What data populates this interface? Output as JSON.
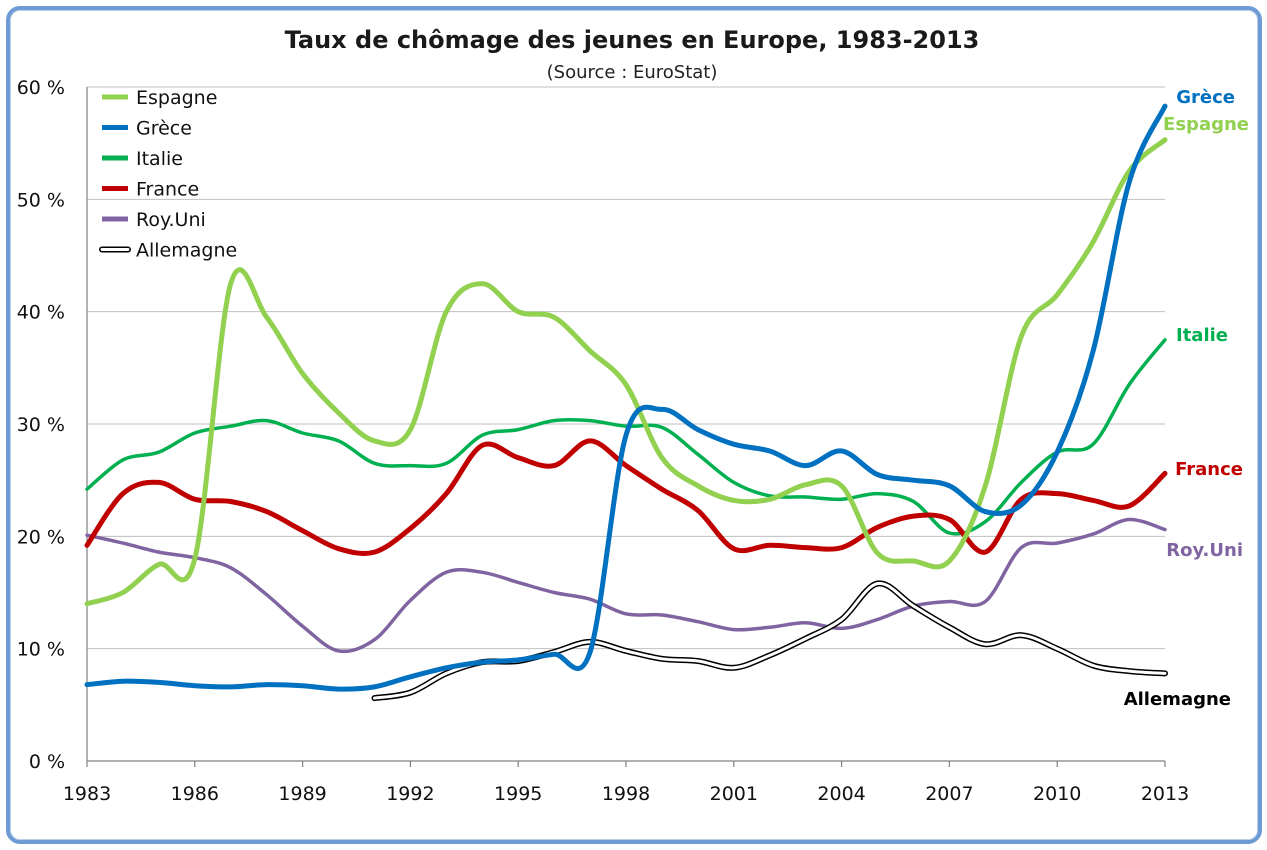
{
  "chart_data": {
    "type": "line",
    "title": "Taux de chômage des jeunes en Europe, 1983-2013",
    "subtitle": "(Source : EuroStat)",
    "xlim": [
      1983,
      2013
    ],
    "ylim": [
      0,
      60
    ],
    "x_ticks": [
      "1983",
      "1986",
      "1989",
      "1992",
      "1995",
      "1998",
      "2001",
      "2004",
      "2007",
      "2010",
      "2013"
    ],
    "y_ticks": [
      "0 %",
      "10 %",
      "20 %",
      "30 %",
      "40 %",
      "50 %",
      "60 %"
    ],
    "grid": "horizontal",
    "legend_position": "top-left",
    "series": [
      {
        "name": "Espagne",
        "end_label": "Espagne",
        "color": "#92d050",
        "points": [
          [
            1983,
            14
          ],
          [
            1984,
            15
          ],
          [
            1985,
            17.5
          ],
          [
            1986,
            18
          ],
          [
            1987,
            42.5
          ],
          [
            1988,
            39.5
          ],
          [
            1989,
            34.5
          ],
          [
            1990,
            31
          ],
          [
            1991,
            28.5
          ],
          [
            1992,
            29.5
          ],
          [
            1993,
            40
          ],
          [
            1994,
            42.5
          ],
          [
            1995,
            40
          ],
          [
            1996,
            39.5
          ],
          [
            1997,
            36.5
          ],
          [
            1998,
            33.5
          ],
          [
            1999,
            27
          ],
          [
            2000,
            24.5
          ],
          [
            2001,
            23.2
          ],
          [
            2002,
            23.3
          ],
          [
            2003,
            24.6
          ],
          [
            2004,
            24.5
          ],
          [
            2005,
            18.5
          ],
          [
            2006,
            17.8
          ],
          [
            2007,
            17.8
          ],
          [
            2008,
            24.5
          ],
          [
            2009,
            37.8
          ],
          [
            2010,
            41.5
          ],
          [
            2011,
            46.2
          ],
          [
            2012,
            52.5
          ],
          [
            2013,
            55.3
          ]
        ]
      },
      {
        "name": "Grèce",
        "end_label": "Grèce",
        "color": "#0070c0",
        "points": [
          [
            1983,
            6.8
          ],
          [
            1984,
            7.1
          ],
          [
            1985,
            7.0
          ],
          [
            1986,
            6.7
          ],
          [
            1987,
            6.6
          ],
          [
            1988,
            6.8
          ],
          [
            1989,
            6.7
          ],
          [
            1990,
            6.4
          ],
          [
            1991,
            6.6
          ],
          [
            1992,
            7.5
          ],
          [
            1993,
            8.3
          ],
          [
            1994,
            8.8
          ],
          [
            1995,
            9.0
          ],
          [
            1996,
            9.5
          ],
          [
            1997,
            9.7
          ],
          [
            1998,
            29
          ],
          [
            1999,
            31.3
          ],
          [
            2000,
            29.5
          ],
          [
            2001,
            28.2
          ],
          [
            2002,
            27.6
          ],
          [
            2003,
            26.3
          ],
          [
            2004,
            27.6
          ],
          [
            2005,
            25.5
          ],
          [
            2006,
            25.0
          ],
          [
            2007,
            24.5
          ],
          [
            2008,
            22.2
          ],
          [
            2009,
            22.8
          ],
          [
            2010,
            27.5
          ],
          [
            2011,
            36.5
          ],
          [
            2012,
            51.5
          ],
          [
            2013,
            58.3
          ]
        ]
      },
      {
        "name": "Italie",
        "end_label": "Italie",
        "color": "#00b050",
        "points": [
          [
            1983,
            24.2
          ],
          [
            1984,
            26.8
          ],
          [
            1985,
            27.5
          ],
          [
            1986,
            29.2
          ],
          [
            1987,
            29.8
          ],
          [
            1988,
            30.3
          ],
          [
            1989,
            29.2
          ],
          [
            1990,
            28.5
          ],
          [
            1991,
            26.5
          ],
          [
            1992,
            26.3
          ],
          [
            1993,
            26.5
          ],
          [
            1994,
            29
          ],
          [
            1995,
            29.5
          ],
          [
            1996,
            30.3
          ],
          [
            1997,
            30.3
          ],
          [
            1998,
            29.8
          ],
          [
            1999,
            29.7
          ],
          [
            2000,
            27.3
          ],
          [
            2001,
            24.8
          ],
          [
            2002,
            23.6
          ],
          [
            2003,
            23.5
          ],
          [
            2004,
            23.3
          ],
          [
            2005,
            23.8
          ],
          [
            2006,
            23.1
          ],
          [
            2007,
            20.3
          ],
          [
            2008,
            21.3
          ],
          [
            2009,
            24.8
          ],
          [
            2010,
            27.5
          ],
          [
            2011,
            28.2
          ],
          [
            2012,
            33.5
          ],
          [
            2013,
            37.5
          ]
        ]
      },
      {
        "name": "France",
        "end_label": "France",
        "color": "#c00000",
        "points": [
          [
            1983,
            19.2
          ],
          [
            1984,
            23.8
          ],
          [
            1985,
            24.8
          ],
          [
            1986,
            23.3
          ],
          [
            1987,
            23.1
          ],
          [
            1988,
            22.2
          ],
          [
            1989,
            20.5
          ],
          [
            1990,
            18.9
          ],
          [
            1991,
            18.6
          ],
          [
            1992,
            20.7
          ],
          [
            1993,
            23.8
          ],
          [
            1994,
            28.1
          ],
          [
            1995,
            27
          ],
          [
            1996,
            26.3
          ],
          [
            1997,
            28.5
          ],
          [
            1998,
            26.3
          ],
          [
            1999,
            24.2
          ],
          [
            2000,
            22.3
          ],
          [
            2001,
            18.9
          ],
          [
            2002,
            19.2
          ],
          [
            2003,
            19.0
          ],
          [
            2004,
            19.0
          ],
          [
            2005,
            20.8
          ],
          [
            2006,
            21.8
          ],
          [
            2007,
            21.5
          ],
          [
            2008,
            18.6
          ],
          [
            2009,
            23.3
          ],
          [
            2010,
            23.8
          ],
          [
            2011,
            23.2
          ],
          [
            2012,
            22.7
          ],
          [
            2013,
            25.6
          ]
        ]
      },
      {
        "name": "Roy.Uni",
        "end_label": "Roy.Uni",
        "color": "#8064a2",
        "points": [
          [
            1983,
            20.1
          ],
          [
            1984,
            19.4
          ],
          [
            1985,
            18.6
          ],
          [
            1986,
            18.1
          ],
          [
            1987,
            17.2
          ],
          [
            1988,
            14.8
          ],
          [
            1989,
            12.0
          ],
          [
            1990,
            9.8
          ],
          [
            1991,
            10.8
          ],
          [
            1992,
            14.3
          ],
          [
            1993,
            16.8
          ],
          [
            1994,
            16.8
          ],
          [
            1995,
            15.9
          ],
          [
            1996,
            15.0
          ],
          [
            1997,
            14.4
          ],
          [
            1998,
            13.1
          ],
          [
            1999,
            13.0
          ],
          [
            2000,
            12.4
          ],
          [
            2001,
            11.7
          ],
          [
            2002,
            11.9
          ],
          [
            2003,
            12.3
          ],
          [
            2004,
            11.8
          ],
          [
            2005,
            12.6
          ],
          [
            2006,
            13.8
          ],
          [
            2007,
            14.2
          ],
          [
            2008,
            14.2
          ],
          [
            2009,
            19.0
          ],
          [
            2010,
            19.4
          ],
          [
            2011,
            20.2
          ],
          [
            2012,
            21.5
          ],
          [
            2013,
            20.6
          ]
        ]
      },
      {
        "name": "Allemagne",
        "end_label": "Allemagne",
        "color": "#000000",
        "hollow": true,
        "points": [
          [
            1991,
            5.6
          ],
          [
            1992,
            6.1
          ],
          [
            1993,
            7.8
          ],
          [
            1994,
            8.8
          ],
          [
            1995,
            8.9
          ],
          [
            1996,
            9.7
          ],
          [
            1997,
            10.6
          ],
          [
            1998,
            9.8
          ],
          [
            1999,
            9.1
          ],
          [
            2000,
            8.9
          ],
          [
            2001,
            8.3
          ],
          [
            2002,
            9.4
          ],
          [
            2003,
            10.9
          ],
          [
            2004,
            12.6
          ],
          [
            2005,
            15.8
          ],
          [
            2006,
            13.8
          ],
          [
            2007,
            11.9
          ],
          [
            2008,
            10.4
          ],
          [
            2009,
            11.2
          ],
          [
            2010,
            10.0
          ],
          [
            2011,
            8.5
          ],
          [
            2012,
            8.0
          ],
          [
            2013,
            7.8
          ]
        ]
      }
    ]
  }
}
